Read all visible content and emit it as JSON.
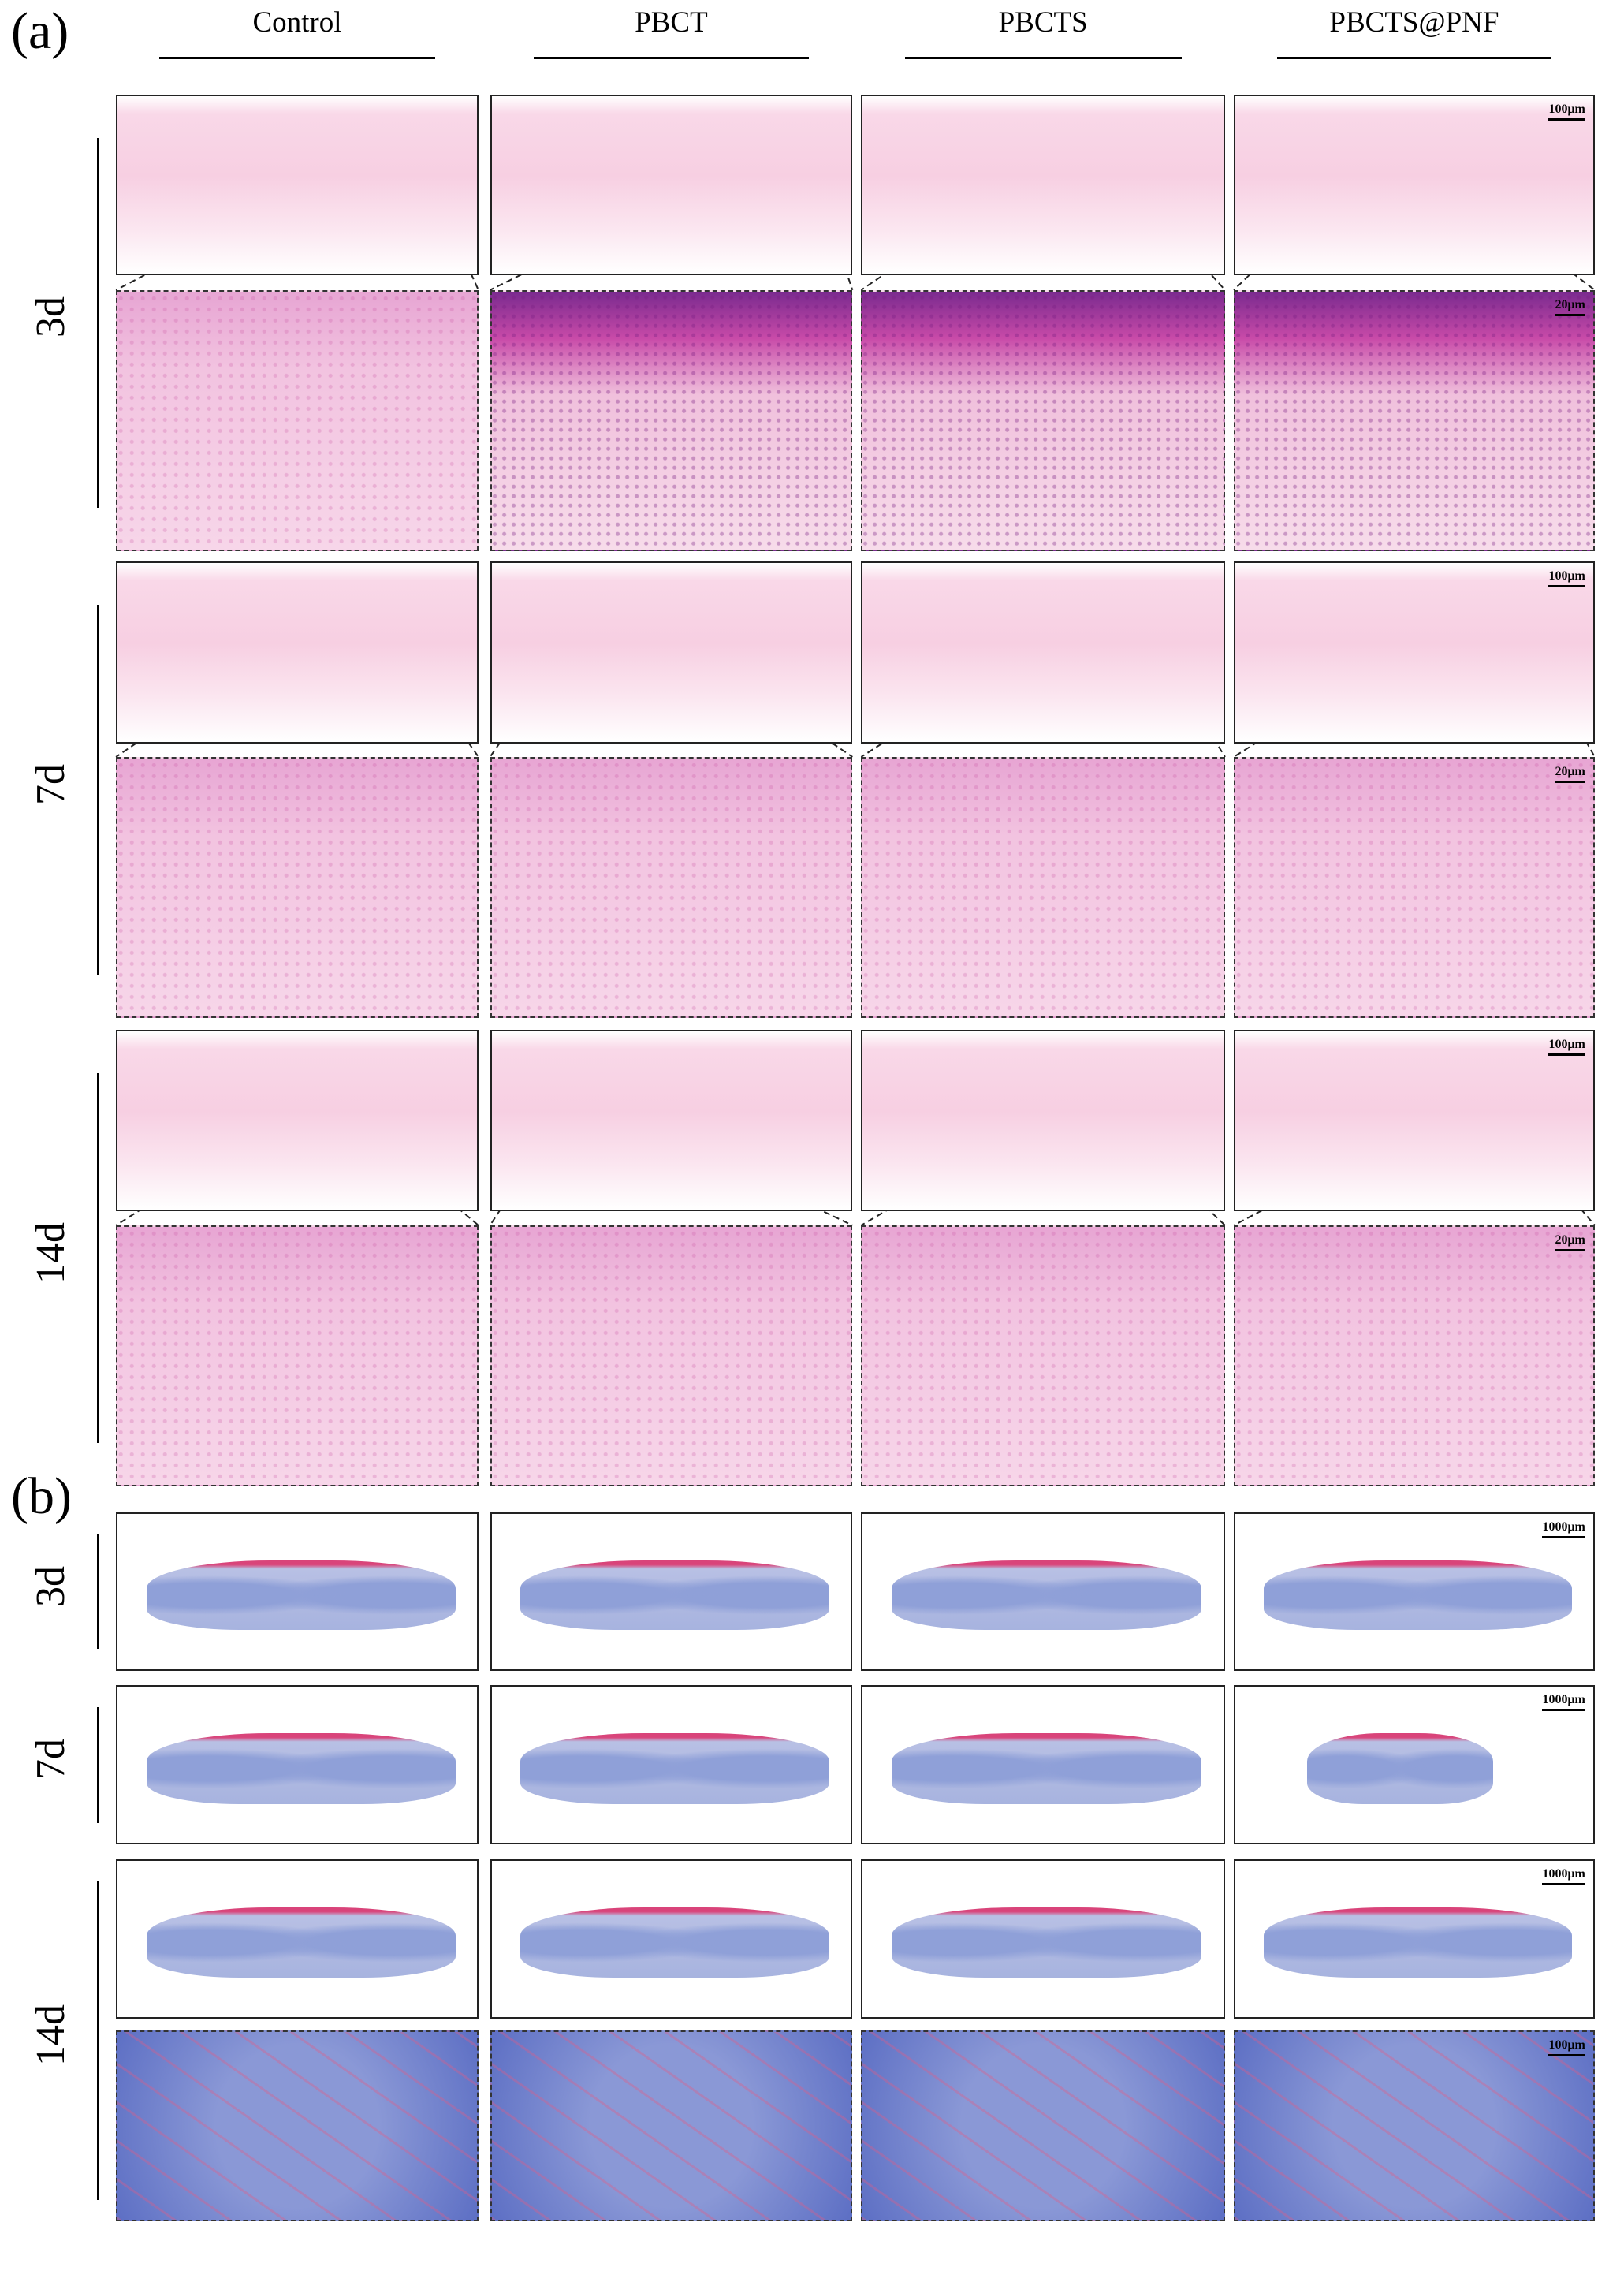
{
  "panel_a": {
    "label": "(a)",
    "columns": [
      "Control",
      "PBCT",
      "PBCTS",
      "PBCTS@PNF"
    ],
    "rows": [
      "3d",
      "7d",
      "14d"
    ],
    "scale_bars": {
      "overview": "100μm",
      "zoom": "20μm"
    }
  },
  "panel_b": {
    "label": "(b)",
    "rows": [
      "3d",
      "7d",
      "14d"
    ],
    "scale_bars": {
      "overview": "1000μm",
      "zoom": "100μm"
    }
  }
}
